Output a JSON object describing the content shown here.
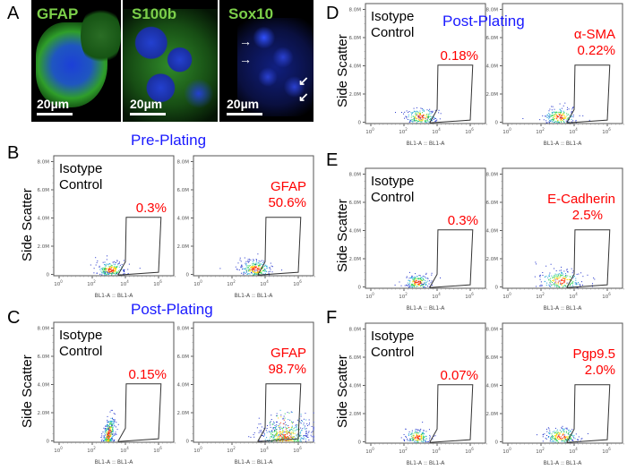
{
  "panels": {
    "A": {
      "letter": "A",
      "images": [
        {
          "title": "GFAP",
          "scale": "20µm"
        },
        {
          "title": "S100b",
          "scale": "20µm"
        },
        {
          "title": "Sox10",
          "scale": "20µm"
        }
      ]
    },
    "B": {
      "letter": "B",
      "title": "Pre-Plating"
    },
    "C": {
      "letter": "C",
      "title": "Post-Plating"
    },
    "D": {
      "letter": "D",
      "title": "Post-Plating"
    },
    "E": {
      "letter": "E"
    },
    "F": {
      "letter": "F"
    }
  },
  "axes": {
    "ylabel": "Side Scatter",
    "xlabel": "BL1-A :: BL1-A",
    "yticks": [
      "0",
      "2.0M",
      "4.0M",
      "6.0M",
      "8.0M"
    ],
    "xticks": [
      "0",
      "2",
      "4",
      "6"
    ]
  },
  "colors": {
    "title_blue": "#1a1aff",
    "label_red": "#ff0000",
    "micro_green": "#7ccf4a"
  },
  "plots": [
    {
      "panel": "B",
      "label": "Isotype\nControl",
      "percent": "0.3%",
      "label_color": "#000000"
    },
    {
      "panel": "B",
      "label": "GFAP",
      "percent": "50.6%",
      "label_color": "#ff0000"
    },
    {
      "panel": "C",
      "label": "Isotype\nControl",
      "percent": "0.15%",
      "label_color": "#000000"
    },
    {
      "panel": "C",
      "label": "GFAP",
      "percent": "98.7%",
      "label_color": "#ff0000"
    },
    {
      "panel": "D",
      "label": "Isotype\nControl",
      "percent": "0.18%",
      "label_color": "#000000"
    },
    {
      "panel": "D",
      "label": "α-SMA",
      "percent": "0.22%",
      "label_color": "#ff0000"
    },
    {
      "panel": "E",
      "label": "Isotype\nControl",
      "percent": "0.3%",
      "label_color": "#000000"
    },
    {
      "panel": "E",
      "label": "E-Cadherin",
      "percent": "2.5%",
      "label_color": "#ff0000"
    },
    {
      "panel": "F",
      "label": "Isotype\nControl",
      "percent": "0.07%",
      "label_color": "#000000"
    },
    {
      "panel": "F",
      "label": "Pgp9.5",
      "percent": "2.0%",
      "label_color": "#ff0000"
    }
  ]
}
